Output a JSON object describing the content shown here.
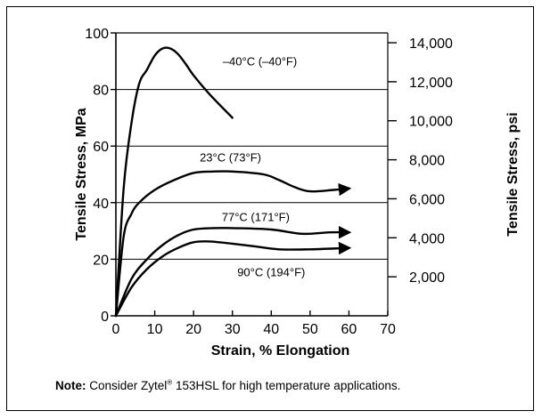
{
  "chart_data": {
    "type": "line",
    "xlabel": "Strain, % Elongation",
    "ylabel": "Tensile Stress, MPa",
    "ylabel_right": "Tensile Stress, psi",
    "xlim": [
      0,
      70
    ],
    "ylim": [
      0,
      100
    ],
    "ylim_right_psi": [
      0,
      14503.8
    ],
    "x_ticks": [
      0,
      10,
      20,
      30,
      40,
      50,
      60,
      70
    ],
    "y_ticks": [
      0,
      20,
      40,
      60,
      80,
      100
    ],
    "y_right_ticks": [
      {
        "value": 2000,
        "label": "2,000"
      },
      {
        "value": 4000,
        "label": "4,000"
      },
      {
        "value": 6000,
        "label": "6,000"
      },
      {
        "value": 8000,
        "label": "8,000"
      },
      {
        "value": 10000,
        "label": "10,000"
      },
      {
        "value": 12000,
        "label": "12,000"
      },
      {
        "value": 14000,
        "label": "14,000"
      }
    ],
    "grid": "horizontal at 20, 40, 60, 80 MPa",
    "series": [
      {
        "name": "–40°C (–40°F)",
        "color": "#000000",
        "arrow": false,
        "x": [
          0,
          2,
          4,
          6,
          8,
          10,
          12,
          14,
          16,
          18,
          20,
          24,
          30
        ],
        "y": [
          0,
          45,
          68,
          82,
          87,
          92,
          94.5,
          94.5,
          92.5,
          89,
          85,
          78.5,
          70
        ]
      },
      {
        "name": "23°C (73°F)",
        "color": "#000000",
        "arrow": true,
        "x": [
          0,
          2,
          4,
          6,
          10,
          15,
          20,
          25,
          30,
          38,
          42,
          46,
          50,
          56,
          60
        ],
        "y": [
          0,
          28,
          36,
          40,
          44.5,
          48,
          50.5,
          51,
          51,
          50,
          48,
          45.5,
          44,
          44.5,
          45
        ]
      },
      {
        "name": "77°C (171°F)",
        "color": "#000000",
        "arrow": true,
        "x": [
          0,
          4,
          8,
          12,
          16,
          20,
          25,
          30,
          40,
          48,
          55,
          60
        ],
        "y": [
          0,
          13,
          20,
          25,
          28.5,
          30.5,
          31,
          31,
          30.5,
          29,
          29.5,
          29.5
        ]
      },
      {
        "name": "90°C (194°F)",
        "color": "#000000",
        "arrow": true,
        "x": [
          0,
          4,
          8,
          12,
          16,
          20,
          24,
          30,
          36,
          42,
          50,
          60
        ],
        "y": [
          0,
          10,
          16.5,
          21,
          24,
          26,
          26.3,
          25.5,
          24.5,
          23.5,
          23.5,
          24
        ]
      }
    ],
    "series_label_positions": [
      "top-right of peak",
      "above plateau",
      "above curve",
      "below curve"
    ]
  },
  "note": {
    "prefix": "Note:",
    "text_before": " Consider Zytel",
    "registered": "®",
    "text_after": " 153HSL for high temperature applications."
  }
}
